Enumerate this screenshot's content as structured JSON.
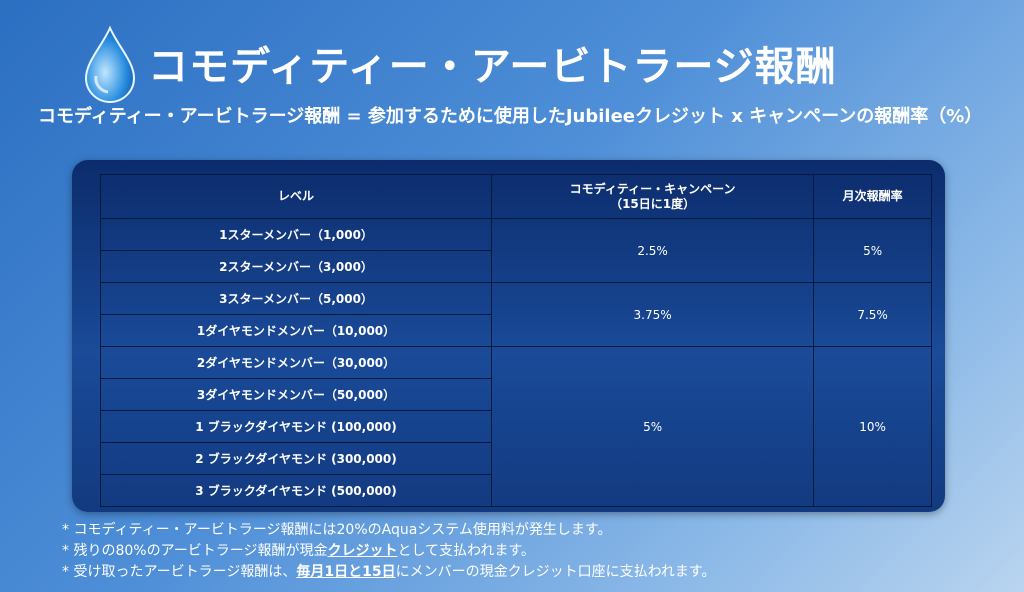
{
  "header": {
    "title": "コモディティー・アービトラージ報酬",
    "formula": "コモディティー・アービトラージ報酬 = 参加するために使用したJubileeクレジット x キャンペーンの報酬率（%）"
  },
  "table": {
    "columns": [
      "レベル",
      "コモディティー・キャンペーン\n（15日に1度）",
      "月次報酬率"
    ],
    "groups": [
      {
        "levels": [
          "1スターメンバー（1,000）",
          "2スターメンバー（3,000）"
        ],
        "campaign": "2.5%",
        "monthly": "5%"
      },
      {
        "levels": [
          "3スターメンバー（5,000）",
          "1ダイヤモンドメンバー（10,000）"
        ],
        "campaign": "3.75%",
        "monthly": "7.5%"
      },
      {
        "levels": [
          "2ダイヤモンドメンバー（30,000）",
          "3ダイヤモンドメンバー（50,000）",
          "1 ブラックダイヤモンド (100,000)",
          "2 ブラックダイヤモンド (300,000)",
          "3 ブラックダイヤモンド (500,000)"
        ],
        "campaign": "5%",
        "monthly": "10%"
      }
    ]
  },
  "notes": [
    {
      "parts": [
        "* コモディティー・アービトラージ報酬には20%のAquaシステム使用料が発生します。"
      ]
    },
    {
      "parts": [
        "* 残りの80%のアービトラージ報酬が現金",
        "クレジット",
        "として支払われます。"
      ]
    },
    {
      "parts": [
        "* 受け取ったアービトラージ報酬は、",
        "毎月1日と15日",
        "にメンバーの現金クレジット口座に支払われます。"
      ]
    }
  ]
}
